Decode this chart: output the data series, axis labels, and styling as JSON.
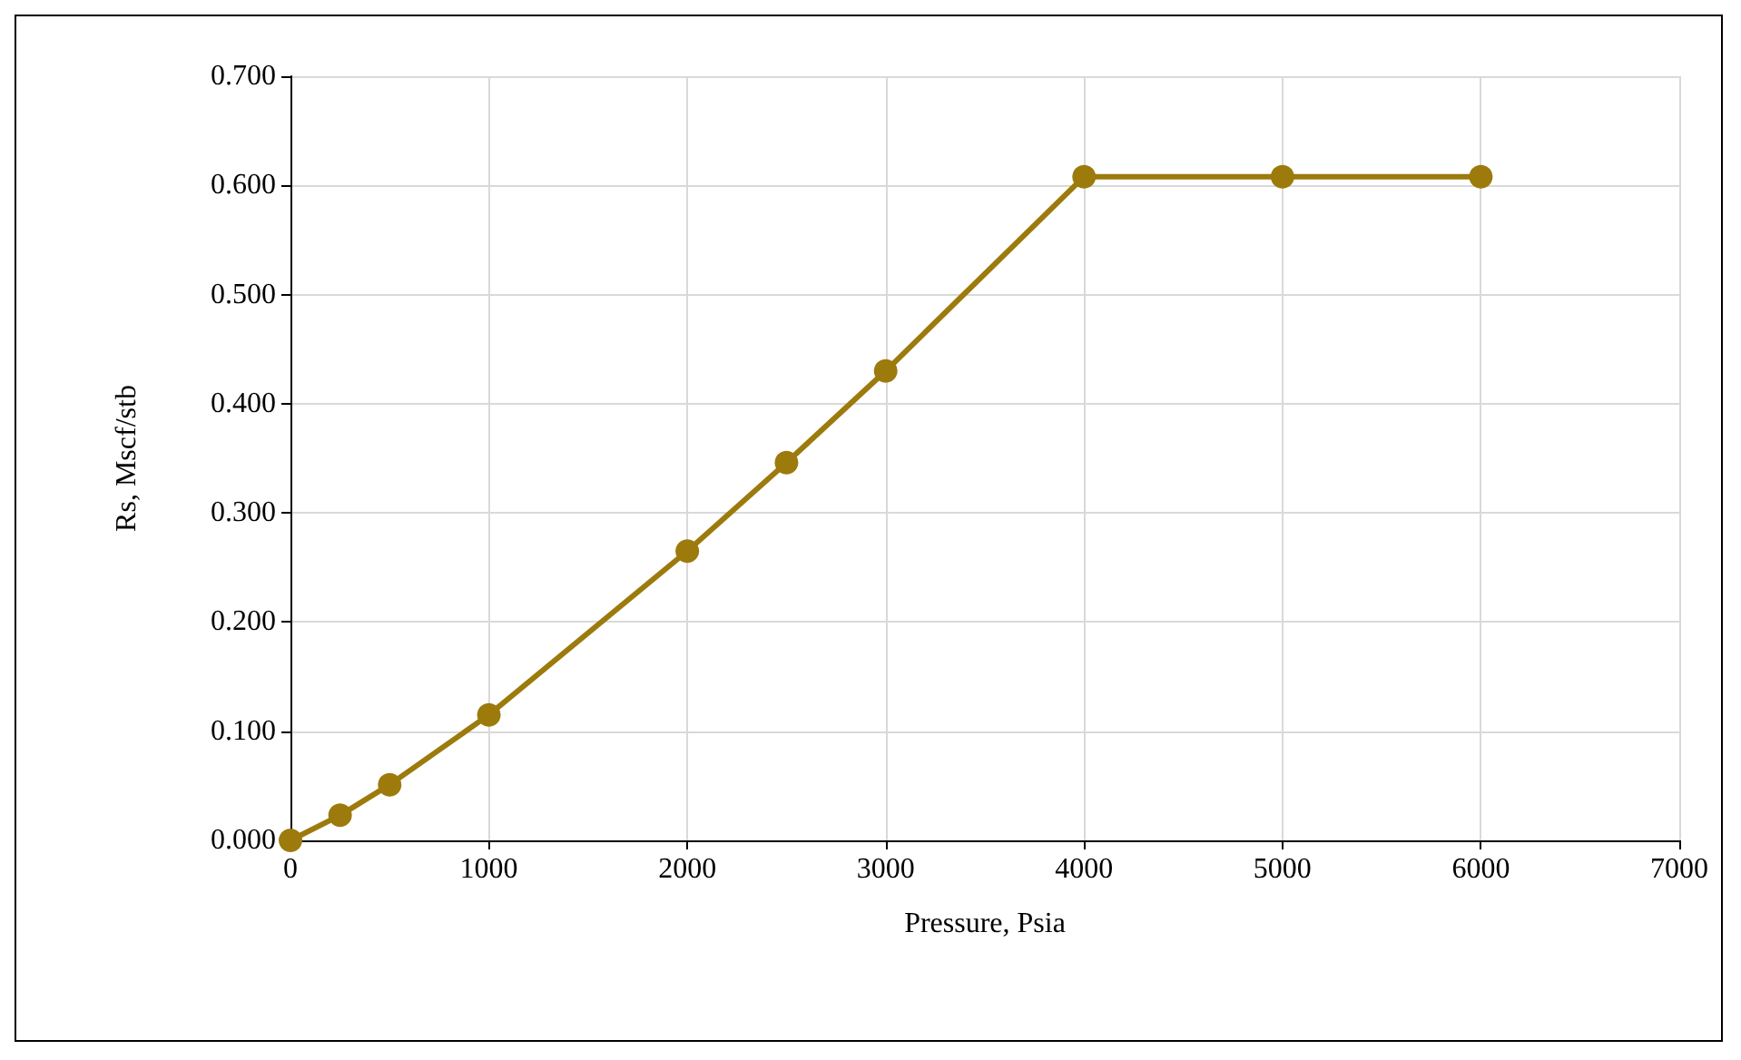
{
  "chart_data": {
    "type": "line",
    "xlabel": "Pressure, Psia",
    "ylabel": "Rs, Mscf/stb",
    "x": [
      0,
      250,
      500,
      1000,
      2000,
      2500,
      3000,
      4000,
      5000,
      6000
    ],
    "series": [
      {
        "color": "#9c7a0c",
        "values": [
          0,
          0.023,
          0.051,
          0.115,
          0.265,
          0.346,
          0.43,
          0.608,
          0.608,
          0.608
        ]
      }
    ],
    "xlim": [
      0,
      7000
    ],
    "xticks": [
      0,
      1000,
      2000,
      3000,
      4000,
      5000,
      6000,
      7000
    ],
    "ylim": [
      0,
      0.7
    ],
    "yticks": [
      {
        "value": 0,
        "label": "0.000"
      },
      {
        "value": 0.1,
        "label": "0.100"
      },
      {
        "value": 0.2,
        "label": "0.200"
      },
      {
        "value": 0.3,
        "label": "0.300"
      },
      {
        "value": 0.4,
        "label": "0.400"
      },
      {
        "value": 0.5,
        "label": "0.500"
      },
      {
        "value": 0.6,
        "label": "0.600"
      },
      {
        "value": 0.7,
        "label": "0.700"
      }
    ],
    "grid": true,
    "marker": "circle",
    "line_style": "solid"
  }
}
